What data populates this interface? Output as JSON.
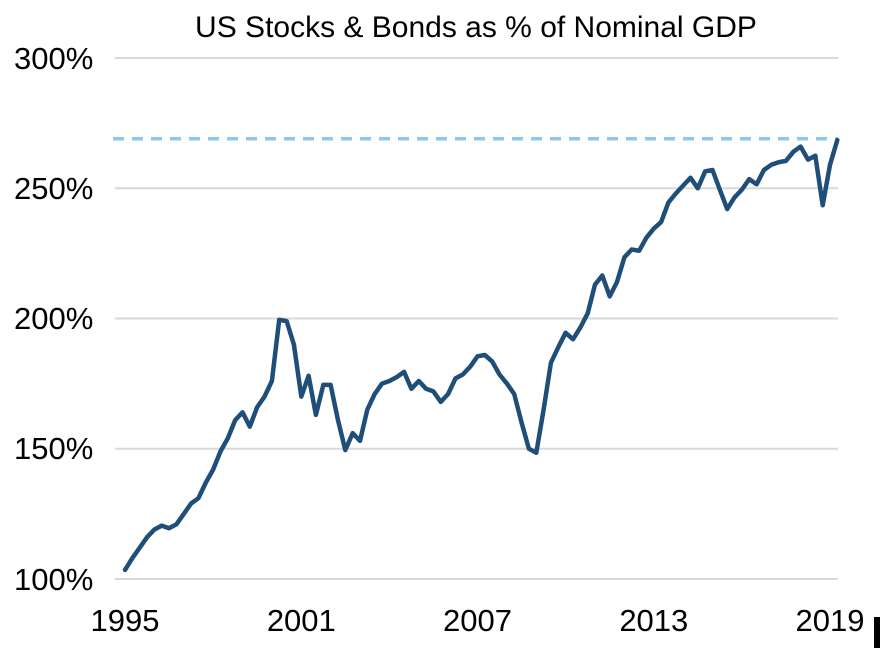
{
  "chart_data": {
    "type": "line",
    "title": "US Stocks & Bonds as % of Nominal GDP",
    "xlabel": "",
    "ylabel": "",
    "x_tick_years": [
      1995,
      2001,
      2007,
      2013,
      2019
    ],
    "y_tick_labels": [
      "300%",
      "250%",
      "200%",
      "150%",
      "100%"
    ],
    "y_tick_values": [
      300,
      250,
      200,
      150,
      100
    ],
    "ylim": [
      100,
      300
    ],
    "x_start_year": 1995,
    "x_step_years": 0.25,
    "grid": "horizontal",
    "legend": "none",
    "series": [
      {
        "name": "US stocks and bonds as % of nominal GDP",
        "color": "#1F4E79",
        "values": [
          103.5,
          108,
          112,
          116,
          119,
          120.5,
          119.5,
          121,
          125,
          129,
          131,
          137,
          142,
          149,
          154,
          161,
          164,
          158.5,
          166,
          170,
          176,
          199.5,
          199,
          190,
          170,
          178,
          163,
          174.5,
          174.5,
          161,
          149.5,
          156,
          153,
          165,
          171,
          175,
          176,
          177.5,
          179.5,
          173,
          176,
          173,
          172,
          168,
          171,
          177,
          178.5,
          181.5,
          185.5,
          186,
          183.5,
          178.5,
          175,
          171,
          160,
          150,
          148.5,
          165,
          183,
          189,
          194.5,
          192,
          196.5,
          202,
          213,
          216.5,
          208.5,
          214,
          223.5,
          226.5,
          226,
          231,
          234.5,
          237,
          244.5,
          248,
          251,
          254,
          250,
          256.5,
          257,
          249.5,
          242,
          246.5,
          249.5,
          253.5,
          251.5,
          257,
          259,
          260,
          260.5,
          264,
          266,
          261,
          262.5,
          243.5,
          259,
          268.5
        ]
      }
    ],
    "reference_line": {
      "value": 269,
      "style": "dashed",
      "color": "#92C5EC"
    }
  },
  "colors": {
    "series_line": "#1F4E79",
    "reference_dashed": "#92C5EC",
    "gridline": "#D9D9D9",
    "text": "#000000",
    "background": "#FFFFFF",
    "cursor_bar": "#000000"
  }
}
